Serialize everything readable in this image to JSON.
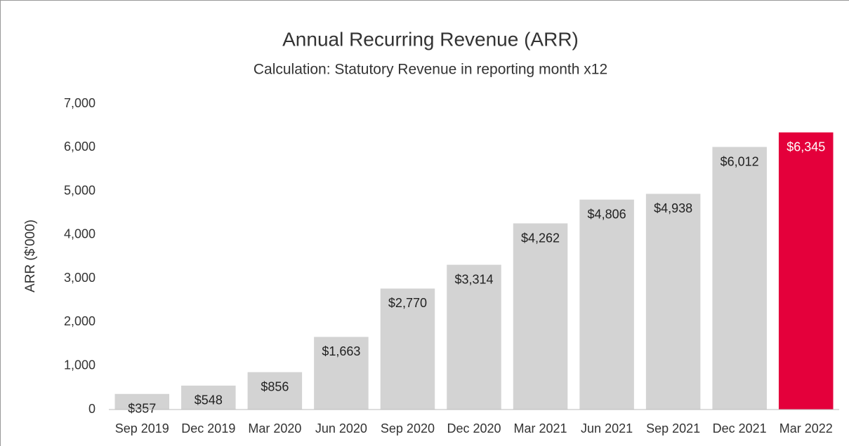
{
  "chart_data": {
    "type": "bar",
    "title": "Annual Recurring Revenue (ARR)",
    "subtitle": "Calculation: Statutory Revenue in reporting month x12",
    "y_label": "ARR ($'000)",
    "categories": [
      "Sep 2019",
      "Dec 2019",
      "Mar 2020",
      "Jun 2020",
      "Sep 2020",
      "Dec 2020",
      "Mar 2021",
      "Jun 2021",
      "Sep 2021",
      "Dec 2021",
      "Mar 2022"
    ],
    "values": [
      357,
      548,
      856,
      1663,
      2770,
      3314,
      4262,
      4806,
      4938,
      6012,
      6345
    ],
    "value_labels": [
      "$357",
      "$548",
      "$856",
      "$1,663",
      "$2,770",
      "$3,314",
      "$4,262",
      "$4,806",
      "$4,938",
      "$6,012",
      "$6,345"
    ],
    "colors": [
      "#d3d3d3",
      "#d3d3d3",
      "#d3d3d3",
      "#d3d3d3",
      "#d3d3d3",
      "#d3d3d3",
      "#d3d3d3",
      "#d3d3d3",
      "#d3d3d3",
      "#d3d3d3",
      "#e4003b"
    ],
    "label_colors": [
      "#222222",
      "#222222",
      "#222222",
      "#222222",
      "#222222",
      "#222222",
      "#222222",
      "#222222",
      "#222222",
      "#222222",
      "#ffffff"
    ],
    "ylim": [
      0,
      7000
    ],
    "yticks": [
      0,
      {
        "value": 1000,
        "label": "1,000"
      },
      {
        "value": 2000,
        "label": "2,000"
      },
      {
        "value": 3000,
        "label": "3,000"
      },
      {
        "value": 4000,
        "label": "4,000"
      },
      {
        "value": 5000,
        "label": "5,000"
      },
      {
        "value": 6000,
        "label": "6,000"
      },
      {
        "value": 7000,
        "label": "7,000"
      }
    ],
    "grid": false
  }
}
